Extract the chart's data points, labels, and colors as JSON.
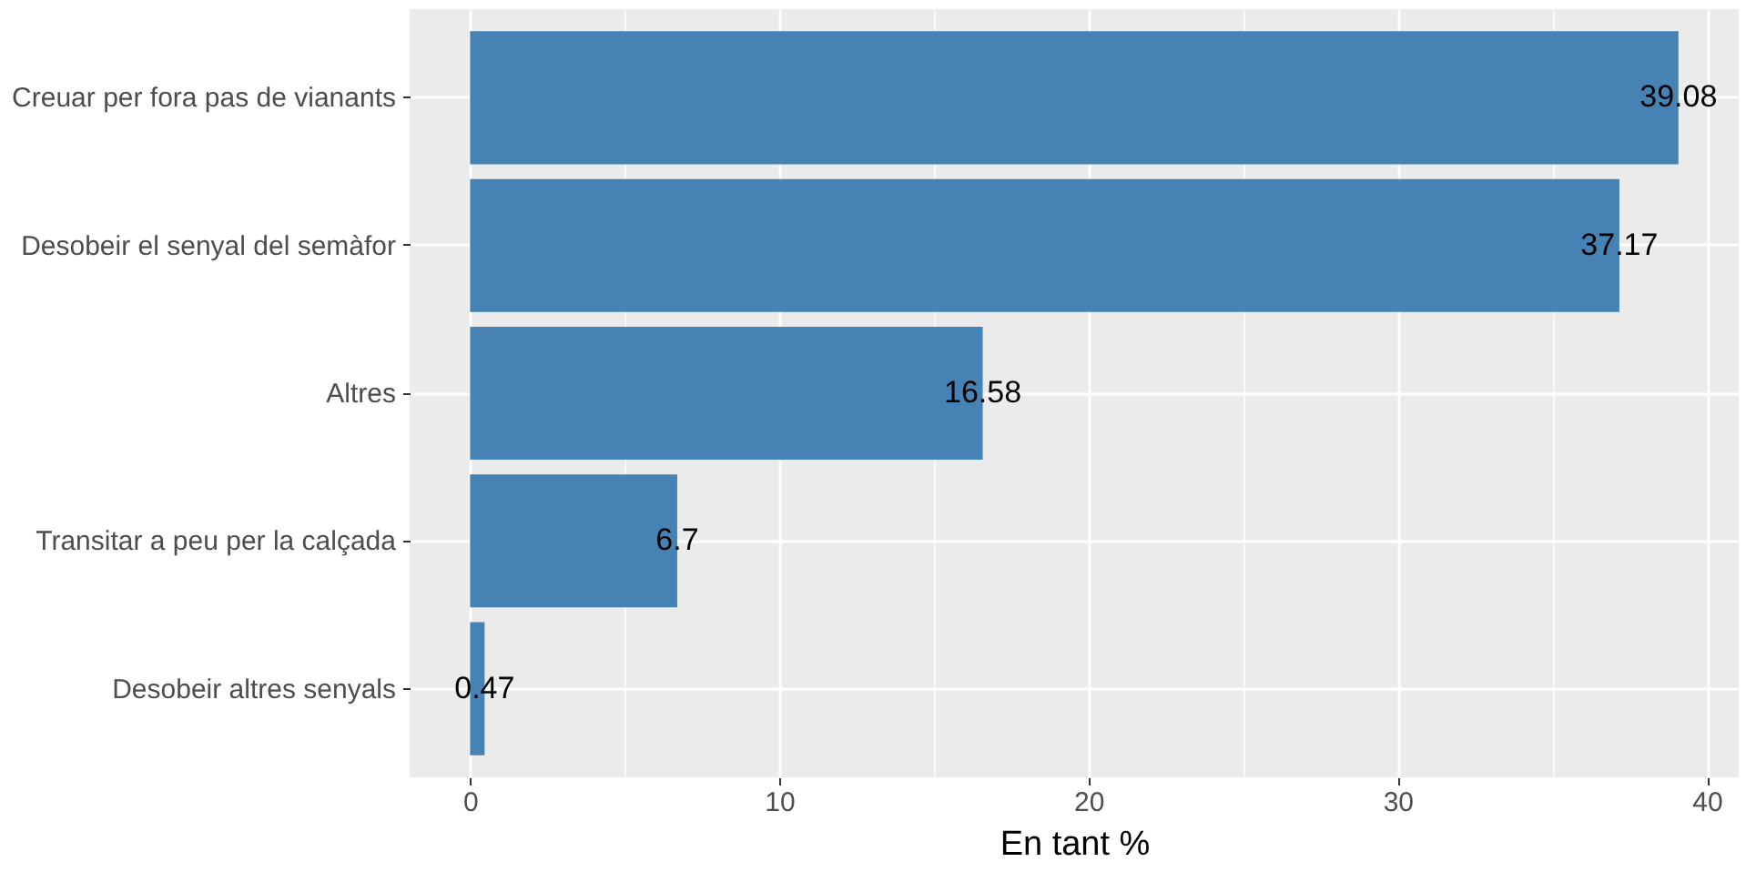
{
  "chart_data": {
    "type": "bar",
    "orientation": "horizontal",
    "xlabel": "En tant %",
    "categories": [
      "Creuar per fora pas de vianants",
      "Desobeir el senyal del semàfor",
      "Altres",
      "Transitar a peu per la calçada",
      "Desobeir altres senyals"
    ],
    "values": [
      39.08,
      37.17,
      16.58,
      6.7,
      0.47
    ],
    "color": "#4682b4",
    "xlim": [
      -1.954,
      41.03
    ],
    "xticks": [
      0,
      {
        "value": 5,
        "label": null
      },
      10,
      {
        "value": 15,
        "label": null
      },
      20,
      {
        "value": 25,
        "label": null
      },
      30,
      {
        "value": 35,
        "label": null
      },
      40
    ],
    "grid": true,
    "data_labels": true
  }
}
